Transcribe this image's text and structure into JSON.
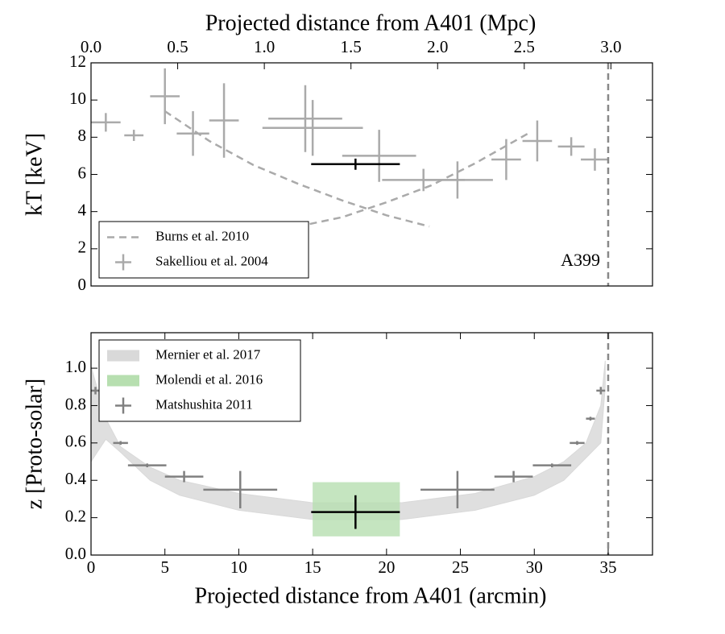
{
  "chart_data": [
    {
      "type": "errorbar",
      "x2label": "Projected distance from A401 (Mpc)",
      "ylabel": "kT [keV]",
      "xlim": [
        0,
        38
      ],
      "x2lim": [
        0,
        3.24
      ],
      "x2ticks": [
        {
          "value": 0,
          "label": "0.0"
        },
        0.5,
        {
          "value": 1,
          "label": "1.0"
        },
        1.5,
        {
          "value": 2,
          "label": "2.0"
        },
        2.5,
        {
          "value": 3,
          "label": "3.0"
        }
      ],
      "ylim": [
        0,
        12
      ],
      "yticks": [
        0,
        2,
        4,
        6,
        8,
        10,
        12
      ],
      "legend": "lower left",
      "vline": {
        "x": 35,
        "color": "#888888"
      },
      "annotations": [
        "A399"
      ],
      "series": [
        {
          "name": "Burns et al. 2010",
          "kind": "line",
          "style": "dashed",
          "color": "#aaaaaa",
          "x": [
            5,
            8,
            11,
            14,
            17,
            20,
            22.9,
            null,
            14,
            17,
            20,
            23,
            26,
            29.8
          ],
          "y": [
            9.4,
            7.8,
            6.5,
            5.5,
            4.6,
            3.8,
            3.2,
            null,
            3.2,
            3.7,
            4.5,
            5.4,
            6.6,
            8.3
          ]
        },
        {
          "name": "Sakelliou et al. 2004",
          "kind": "errorbar",
          "color": "#aaaaaa",
          "x": [
            1.0,
            2.9,
            5.0,
            6.9,
            9.0,
            14.5,
            15.0,
            19.5,
            22.5,
            24.8,
            28.1,
            30.2,
            32.5,
            34.1
          ],
          "y": [
            8.8,
            8.1,
            10.2,
            8.2,
            8.9,
            9.0,
            8.5,
            7.0,
            5.7,
            5.7,
            6.8,
            7.8,
            7.5,
            6.8
          ],
          "xerr": [
            1.0,
            0.65,
            1.0,
            1.1,
            1.0,
            2.5,
            3.4,
            2.5,
            2.8,
            2.4,
            1.0,
            1.0,
            0.9,
            0.95
          ],
          "yerr": [
            0.5,
            0.3,
            1.5,
            1.2,
            2.0,
            1.8,
            1.5,
            1.4,
            0.6,
            1.0,
            1.1,
            1.1,
            0.5,
            0.6
          ]
        },
        {
          "kind": "errorbar",
          "color": "#000000",
          "x": [
            17.9
          ],
          "y": [
            6.55
          ],
          "xerr": [
            3.0
          ],
          "yerr": [
            0.3
          ]
        }
      ]
    },
    {
      "type": "errorbar",
      "xlabel": "Projected distance from A401 (arcmin)",
      "ylabel": "z [Proto-solar]",
      "xlim": [
        0,
        38
      ],
      "xticks": [
        0,
        5,
        10,
        15,
        20,
        25,
        30,
        35
      ],
      "ylim": [
        0,
        1.19
      ],
      "yticks": [
        {
          "value": 0,
          "label": "0.0"
        },
        0.2,
        0.4,
        0.6,
        0.8,
        {
          "value": 1,
          "label": "1.0"
        }
      ],
      "legend": "upper left",
      "vline": {
        "x": 35,
        "color": "#888888"
      },
      "series": [
        {
          "name": "Mernier et al. 2017",
          "kind": "band",
          "color": "#d9d9d9",
          "x": [
            0,
            1,
            2,
            4,
            6,
            10,
            15,
            21,
            26,
            30,
            32,
            33.5,
            34.5,
            34.8
          ],
          "lower": [
            0.5,
            0.62,
            0.55,
            0.4,
            0.32,
            0.24,
            0.19,
            0.19,
            0.24,
            0.32,
            0.4,
            0.52,
            0.6,
            0.9
          ],
          "upper": [
            1.01,
            0.73,
            0.58,
            0.47,
            0.4,
            0.33,
            0.28,
            0.28,
            0.33,
            0.42,
            0.5,
            0.6,
            0.8,
            1.04
          ]
        },
        {
          "name": "Molendi et al. 2016",
          "kind": "span",
          "color": "#b7dfb0",
          "xrange": [
            15,
            20.9
          ],
          "yrange": [
            0.1,
            0.39
          ]
        },
        {
          "name": "Matshushita 2011",
          "kind": "errorbar",
          "color": "#808080",
          "x": [
            0.3,
            2.0,
            3.8,
            6.3,
            10.1,
            24.8,
            28.6,
            31.2,
            32.9,
            33.8,
            34.5
          ],
          "y": [
            0.88,
            0.6,
            0.48,
            0.42,
            0.35,
            0.35,
            0.42,
            0.48,
            0.6,
            0.73,
            0.88
          ],
          "xerr": [
            0.3,
            0.5,
            1.3,
            1.3,
            2.5,
            2.5,
            1.3,
            1.3,
            0.5,
            0.3,
            0.3
          ],
          "yerr": [
            0.02,
            0.01,
            0.01,
            0.03,
            0.1,
            0.1,
            0.03,
            0.01,
            0.01,
            0.01,
            0.02
          ]
        },
        {
          "kind": "errorbar",
          "color": "#000000",
          "x": [
            17.9
          ],
          "y": [
            0.23
          ],
          "xerr": [
            3.0
          ],
          "yerr": [
            0.09
          ]
        }
      ]
    }
  ]
}
